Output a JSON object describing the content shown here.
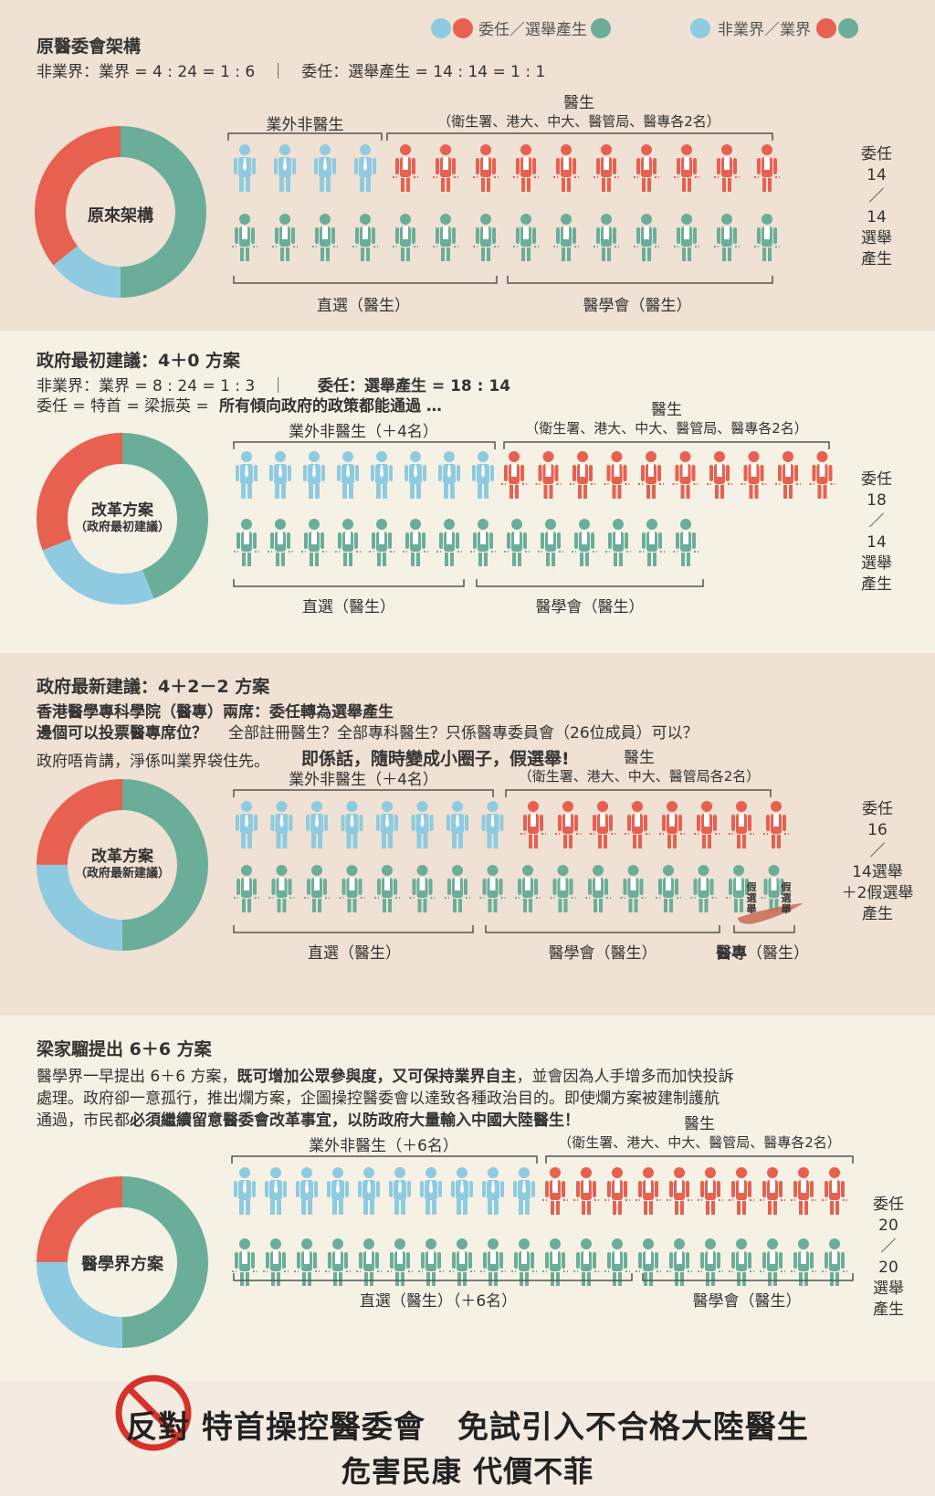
{
  "colors": {
    "blue": "#8fcbe0",
    "red": "#e8604f",
    "green": "#6aae99",
    "bracket": "#555555"
  },
  "legend": {
    "left_text": "委任／選舉產生",
    "right_text": "非業界／業界"
  },
  "s1": {
    "title": "原醫委會架構",
    "ratio": "非業界：業界 = 4 : 24 = 1 : 6　｜　委任：選舉產生 = 14 : 14 = 1 : 1",
    "donut_label": "原來架構",
    "donut": {
      "red": 0.357,
      "blue": 0.143,
      "green": 0.5
    },
    "top_left_label": "業外非醫生",
    "top_right_label1": "醫生",
    "top_right_label2": "（衛生署、港大、中大、醫管局、醫專各2名）",
    "bottom_left_label": "直選（醫生）",
    "bottom_right_label": "醫學會（醫生）",
    "side": [
      "委任",
      "14",
      "／",
      "14",
      "選舉",
      "產生"
    ],
    "rows": {
      "blue": 4,
      "red": 10,
      "green": 14
    }
  },
  "s2": {
    "title": "政府最初建議：4＋0 方案",
    "ratio_a": "非業界：業界 = 8 : 24 = 1 : 3　｜",
    "ratio_b": "委任：選舉產生 = 18 : 14",
    "line2_a": "委任 = 特首 = 梁振英 =",
    "line2_b": "所有傾向政府的政策都能通過 …",
    "donut_label1": "改革方案",
    "donut_label2": "（政府最初建議）",
    "donut": {
      "red": 0.31,
      "blue": 0.25,
      "green": 0.44
    },
    "top_left_label": "業外非醫生（＋4名）",
    "top_right_label1": "醫生",
    "top_right_label2": "（衛生署、港大、中大、醫管局、醫專各2名）",
    "bottom_left_label": "直選（醫生）",
    "bottom_right_label": "醫學會（醫生）",
    "side": [
      "委任",
      "18",
      "／",
      "14",
      "選舉",
      "產生"
    ],
    "rows": {
      "blue": 8,
      "red": 10,
      "green": 14
    }
  },
  "s3": {
    "title": "政府最新建議：4＋2－2 方案",
    "line1": "香港醫學專科學院（醫專）兩席：委任轉為選舉產生",
    "line2_a": "邊個可以投票醫專席位？",
    "line2_b": "全部註冊醫生？全部專科醫生？只係醫專委員會（26位成員）可以？",
    "line3_a": "政府唔肯講，淨係叫業界袋住先。",
    "line3_b": "即係話，隨時變成小圈子，假選舉!",
    "donut_label1": "改革方案",
    "donut_label2": "（政府最新建議）",
    "donut": {
      "red": 0.25,
      "blue": 0.25,
      "green": 0.5
    },
    "top_left_label": "業外非醫生（＋4名）",
    "top_right_label1": "醫生",
    "top_right_label2": "（衛生署、港大、中大、醫管局各2名）",
    "bottom_left_label": "直選（醫生）",
    "bottom_right_label": "醫學會（醫生）",
    "bottom_extra_label_a": "醫專",
    "bottom_extra_label_b": "（醫生）",
    "fake_tag": "假選舉",
    "side": [
      "委任",
      "16",
      "／",
      "14選舉",
      "＋2假選舉",
      "產生"
    ],
    "rows": {
      "blue": 8,
      "red": 8,
      "green": 16
    }
  },
  "s4": {
    "title": "梁家騮提出 6＋6 方案",
    "para1_a": "醫學界一早提出 6＋6 方案，",
    "para1_b": "既可增加公眾參與度，又可保持業界自主",
    "para1_c": "，並會因為人手增多而加快投訴",
    "para2": "處理。政府卻一意孤行，推出爛方案，企圖操控醫委會以達致各種政治目的。即使爛方案被建制護航",
    "para3_a": "通過，市民都",
    "para3_b": "必須繼續留意醫委會改革事宜，以防政府大量輸入中國大陸醫生！",
    "donut_label": "醫學界方案",
    "donut": {
      "red": 0.25,
      "blue": 0.25,
      "green": 0.5
    },
    "top_left_label": "業外非醫生（＋6名）",
    "top_right_label1": "醫生",
    "top_right_label2": "（衛生署、港大、中大、醫管局、醫專各2名）",
    "bottom_left_label": "直選（醫生）（＋6名）",
    "bottom_right_label": "醫學會（醫生）",
    "side": [
      "委任",
      "20",
      "／",
      "20",
      "選舉",
      "產生"
    ],
    "rows": {
      "blue": 10,
      "red": 10,
      "green": 20
    }
  },
  "footer": {
    "line1_a": "反對",
    "line1_b": "特首操控醫委會　免試引入不合格大陸醫生",
    "line2": "危害民康 代價不菲"
  }
}
